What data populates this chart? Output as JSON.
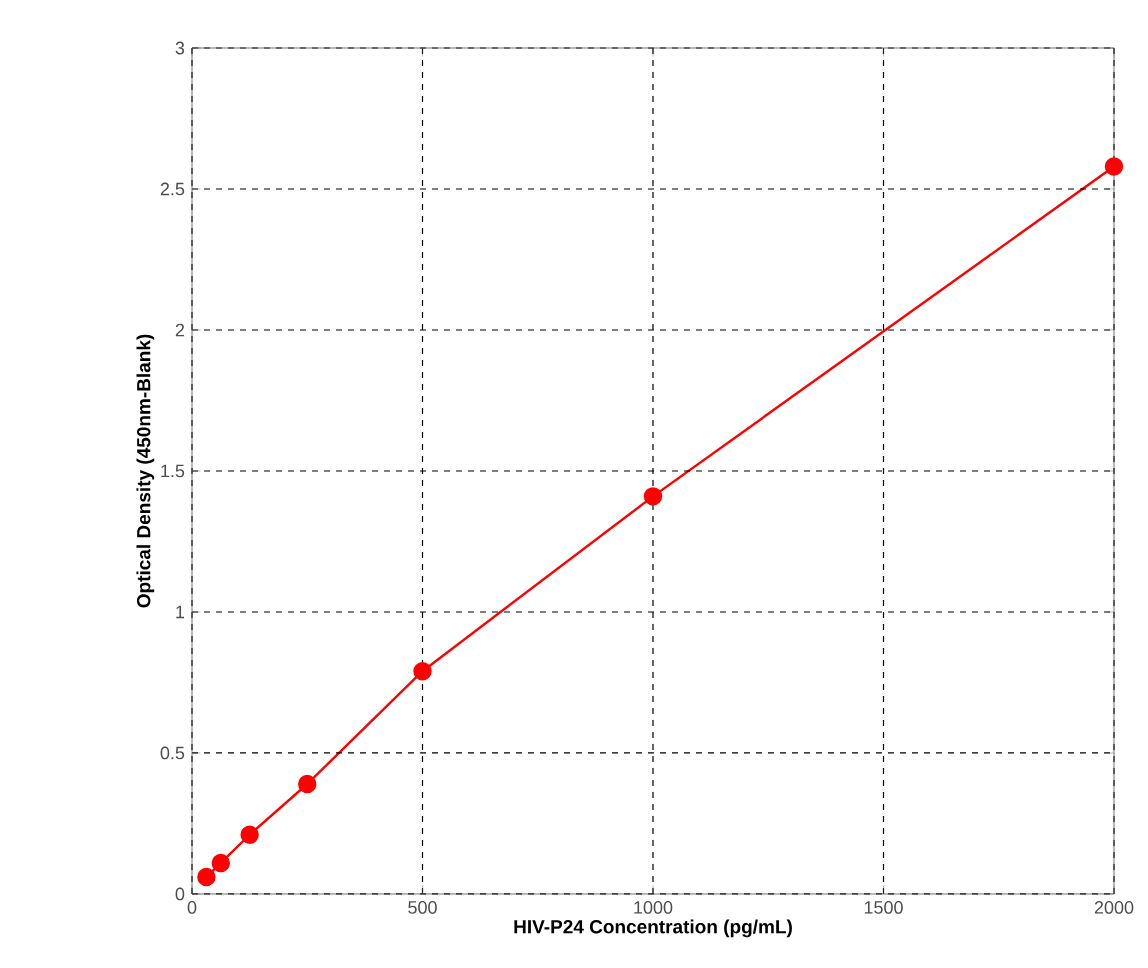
{
  "chart_data": {
    "type": "line",
    "xlabel": "HIV-P24 Concentration (pg/mL)",
    "ylabel": "Optical Density (450nm-Blank)",
    "x": [
      31.25,
      62.5,
      125,
      250,
      500,
      1000,
      2000
    ],
    "series": [
      {
        "color": "#ff0000",
        "values": [
          0.06,
          0.11,
          0.21,
          0.39,
          0.79,
          1.41,
          2.58
        ]
      }
    ],
    "xlim": [
      0,
      2000
    ],
    "xticks": [
      0,
      500,
      1000,
      1500,
      2000
    ],
    "ylim": [
      0,
      3
    ],
    "yticks": [
      0,
      0.5,
      1,
      1.5,
      2,
      2.5,
      3
    ],
    "grid": true,
    "marker": "circle",
    "line_style": "solid"
  }
}
